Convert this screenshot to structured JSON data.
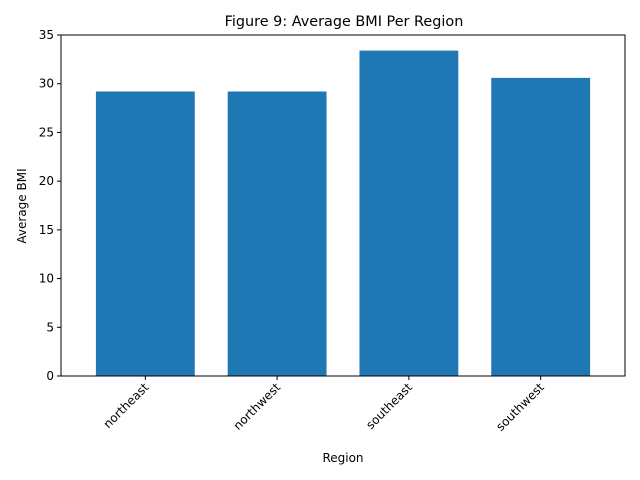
{
  "chart_data": {
    "type": "bar",
    "title": "Figure 9: Average BMI Per Region",
    "xlabel": "Region",
    "ylabel": "Average BMI",
    "categories": [
      "northeast",
      "northwest",
      "southeast",
      "southwest"
    ],
    "values": [
      29.2,
      29.2,
      33.4,
      30.6
    ],
    "ylim": [
      0,
      35
    ],
    "yticks": [
      "0",
      "5",
      "10",
      "15",
      "20",
      "25",
      "30",
      "35"
    ],
    "grid": false,
    "bar_color": "#1f77b4"
  }
}
